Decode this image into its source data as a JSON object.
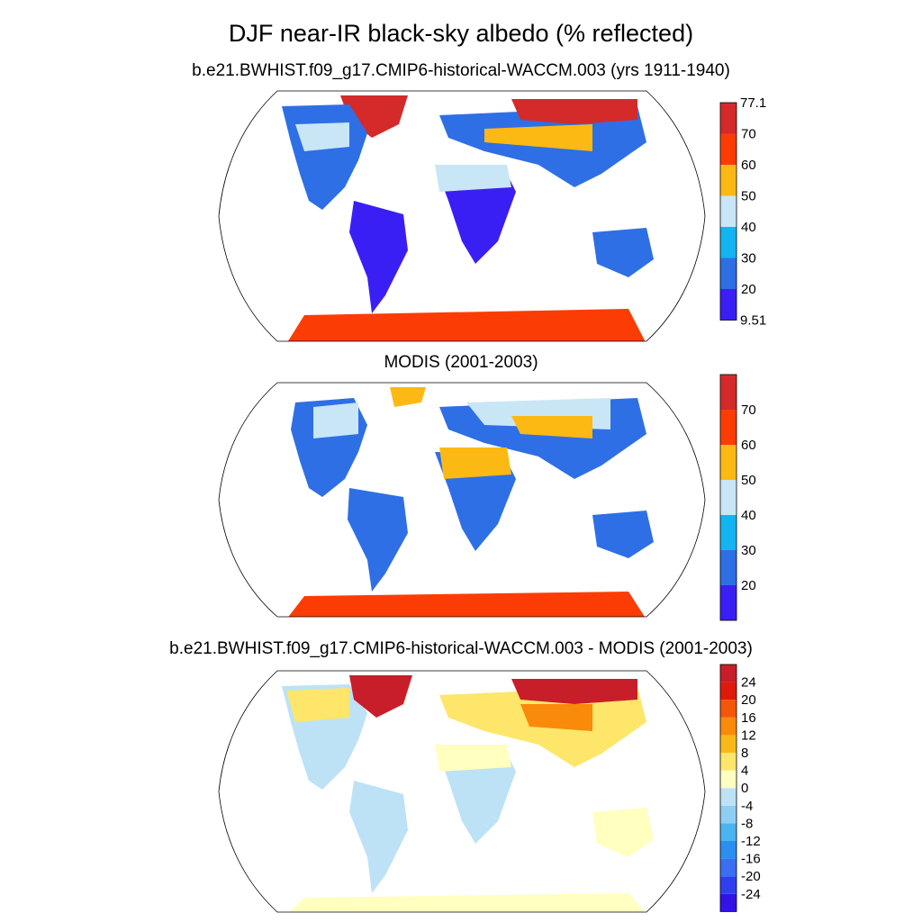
{
  "title": "DJF near-IR black-sky albedo (% reflected)",
  "chart_data": [
    {
      "type": "heatmap",
      "projection": "Robinson",
      "subtitle": "b.e21.BWHIST.f09_g17.CMIP6-historical-WACCM.003 (yrs 1911-1940)",
      "colorbar": {
        "min_label": "9.51",
        "max_label": "77.1",
        "tick_labels": [
          "20",
          "30",
          "40",
          "50",
          "60",
          "70"
        ],
        "colors": [
          "#3a1ff5",
          "#2e6fe6",
          "#14b4f2",
          "#c9e6f7",
          "#fdb913",
          "#fb3c05",
          "#d42a2a"
        ]
      },
      "regions": [
        {
          "name": "Greenland",
          "value": 75
        },
        {
          "name": "Northern Siberia",
          "value": 72
        },
        {
          "name": "Antarctica",
          "value": 70
        },
        {
          "name": "Sahara",
          "value": 45
        },
        {
          "name": "Amazon",
          "value": 15
        },
        {
          "name": "Central Africa",
          "value": 15
        },
        {
          "name": "Australia",
          "value": 28
        }
      ]
    },
    {
      "type": "heatmap",
      "projection": "Robinson",
      "subtitle": "MODIS (2001-2003)",
      "colorbar": {
        "tick_labels": [
          "20",
          "30",
          "40",
          "50",
          "60",
          "70"
        ],
        "colors": [
          "#3a1ff5",
          "#2e6fe6",
          "#14b4f2",
          "#c9e6f7",
          "#fdb913",
          "#fb3c05",
          "#d42a2a"
        ]
      },
      "regions": [
        {
          "name": "Antarctica",
          "value": 65
        },
        {
          "name": "Sahara",
          "value": 50
        },
        {
          "name": "Amazon",
          "value": 25
        },
        {
          "name": "Central Africa",
          "value": 20
        },
        {
          "name": "Australia",
          "value": 28
        },
        {
          "name": "Northern Eurasia",
          "value": 45
        }
      ]
    },
    {
      "type": "heatmap",
      "projection": "Robinson",
      "subtitle": "b.e21.BWHIST.f09_g17.CMIP6-historical-WACCM.003 - MODIS (2001-2003)",
      "colorbar": {
        "tick_labels": [
          "24",
          "20",
          "16",
          "12",
          "8",
          "4",
          "0",
          "-4",
          "-8",
          "-12",
          "-16",
          "-20",
          "-24"
        ],
        "colors": [
          "#3212e6",
          "#2f3ff0",
          "#3a6ff2",
          "#2b8ff0",
          "#4ab4ee",
          "#8fcef3",
          "#bde2f6",
          "#ffffc0",
          "#fde66a",
          "#f9b81a",
          "#f98a0a",
          "#f5560a",
          "#e01a0a",
          "#c81e2a"
        ]
      },
      "regions": [
        {
          "name": "Greenland",
          "value": 26
        },
        {
          "name": "Northern Siberia",
          "value": 22
        },
        {
          "name": "Central Asia",
          "value": 14
        },
        {
          "name": "Amazon",
          "value": -6
        },
        {
          "name": "Sahara",
          "value": 2
        },
        {
          "name": "Australia",
          "value": -2
        }
      ]
    }
  ]
}
